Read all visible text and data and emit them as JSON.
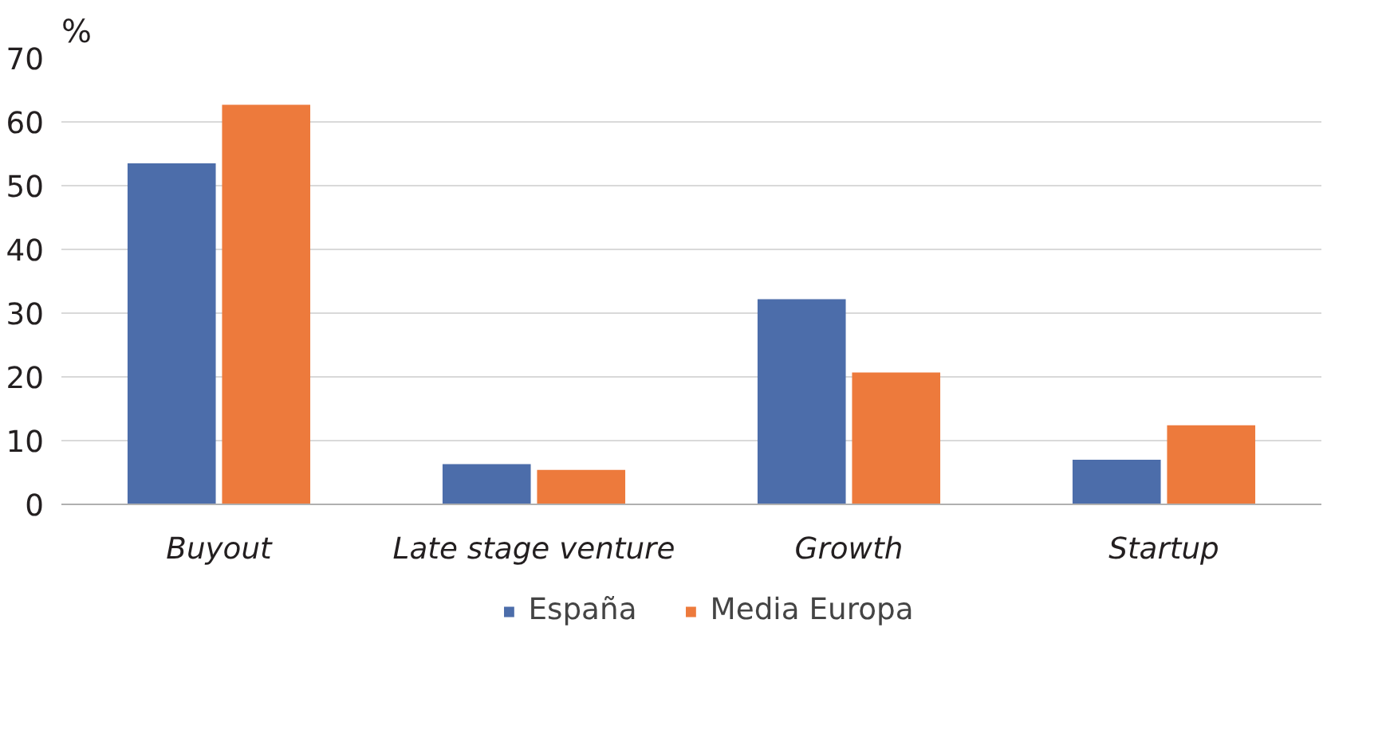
{
  "chart_data": {
    "type": "bar",
    "ylabel": "%",
    "categories": [
      "Buyout",
      "Late stage venture",
      "Growth",
      "Startup"
    ],
    "series": [
      {
        "name": "España",
        "color": "#4c6daa",
        "values": [
          53.5,
          6.3,
          32.2,
          7.0
        ]
      },
      {
        "name": "Media Europa",
        "color": "#ed7a3c",
        "values": [
          62.7,
          5.4,
          20.7,
          12.4
        ]
      }
    ],
    "ylim": [
      0,
      70
    ],
    "yticks": [
      0,
      10,
      20,
      30,
      40,
      50,
      60,
      70
    ],
    "grid": "y",
    "legend": "bottom"
  }
}
